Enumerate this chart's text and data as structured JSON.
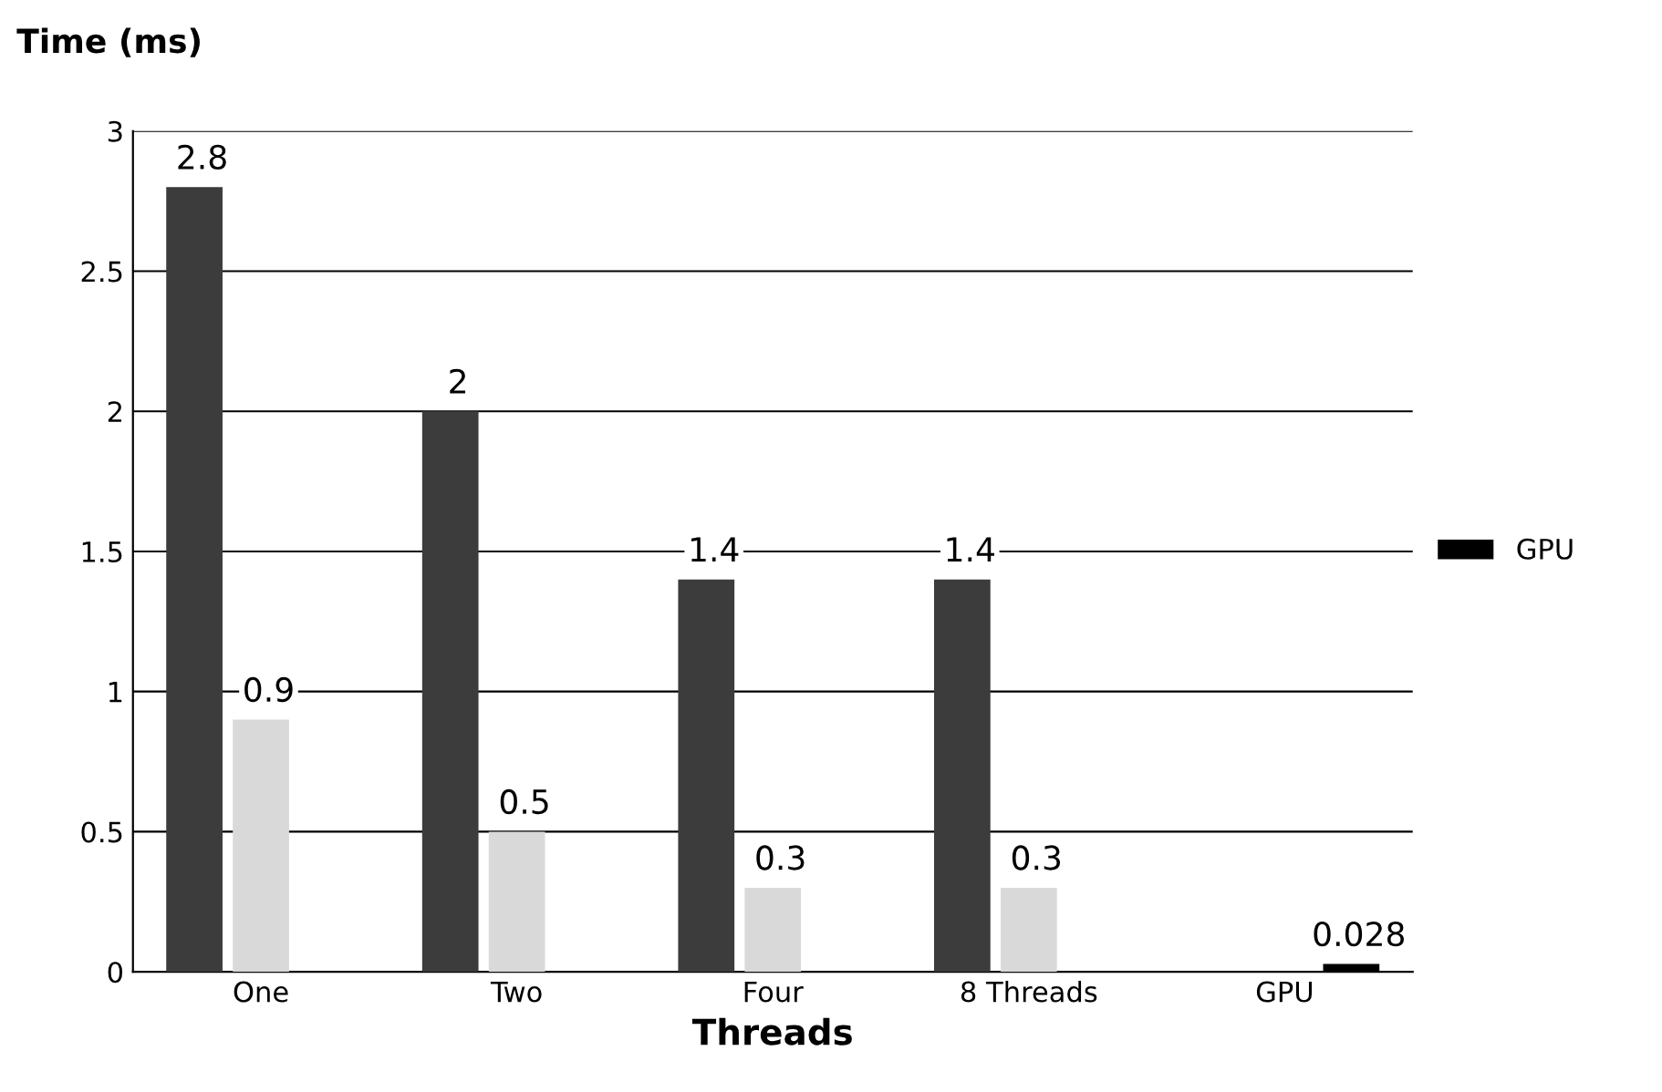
{
  "chart_data": {
    "type": "bar",
    "xlabel": "Threads",
    "ylabel": "Time (ms)",
    "categories": [
      "One",
      "Two",
      "Four",
      "8 Threads",
      "GPU"
    ],
    "series": [
      {
        "color": "#3c3c3c",
        "values": [
          2.8,
          2,
          1.4,
          1.4,
          null
        ]
      },
      {
        "color": "#d9d9d9",
        "values": [
          0.9,
          0.5,
          0.3,
          0.3,
          null
        ]
      },
      {
        "name": "GPU",
        "color": "#000000",
        "values": [
          null,
          null,
          null,
          null,
          0.028
        ]
      }
    ],
    "ylim": [
      0,
      3
    ],
    "yticks": [
      0,
      0.5,
      1,
      1.5,
      2,
      2.5,
      3
    ],
    "grid": "y",
    "legend": "right",
    "data_labels": true
  }
}
